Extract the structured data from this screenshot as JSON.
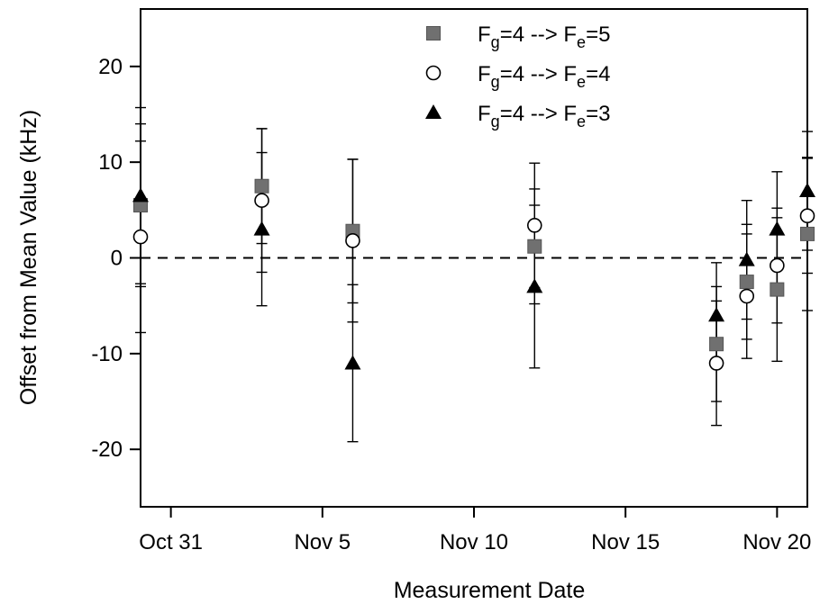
{
  "chart_data": {
    "type": "scatter",
    "title": "",
    "xlabel": "Measurement Date",
    "ylabel": "Offset from Mean Value (kHz)",
    "xlim": [
      "Oct 30",
      "Nov 21"
    ],
    "ylim": [
      -26,
      26
    ],
    "x_ticks": [
      {
        "date": "Oct 31",
        "label": "Oct 31"
      },
      {
        "date": "Nov 5",
        "label": "Nov 5"
      },
      {
        "date": "Nov 10",
        "label": "Nov 10"
      },
      {
        "date": "Nov 15",
        "label": "Nov 15"
      },
      {
        "date": "Nov 20",
        "label": "Nov 20"
      }
    ],
    "y_ticks": [
      {
        "value": 20,
        "label": "20"
      },
      {
        "value": 10,
        "label": "10"
      },
      {
        "value": 0,
        "label": "0"
      },
      {
        "value": -10,
        "label": "-10"
      },
      {
        "value": -20,
        "label": "-20"
      }
    ],
    "reference_line": {
      "y": 0,
      "style": "dashed"
    },
    "grid": false,
    "legend_position": "top-center",
    "series": [
      {
        "name": "F_g=4 --> F_e=5",
        "label_parts": {
          "l1": "F",
          "s1": "g",
          "mid": "=4 --> F",
          "s2": "e",
          "end": "=5"
        },
        "marker": "square-filled",
        "color": "#707070",
        "points": [
          {
            "x": "Oct 30",
            "y": 5.5,
            "err": 8.5
          },
          {
            "x": "Nov 3",
            "y": 7.5,
            "err": 6
          },
          {
            "x": "Nov 6",
            "y": 2.8,
            "err": 7.5
          },
          {
            "x": "Nov 12",
            "y": 1.2,
            "err": 6
          },
          {
            "x": "Nov 18",
            "y": -9,
            "err": 6
          },
          {
            "x": "Nov 19",
            "y": -2.5,
            "err": 6
          },
          {
            "x": "Nov 20",
            "y": -3.3,
            "err": 7.5
          },
          {
            "x": "Nov 21",
            "y": 2.5,
            "err": 8
          }
        ]
      },
      {
        "name": "F_g=4 --> F_e=4",
        "label_parts": {
          "l1": "F",
          "s1": "g",
          "mid": "=4 --> F",
          "s2": "e",
          "end": "=4"
        },
        "marker": "circle-open",
        "color": "#000000",
        "points": [
          {
            "x": "Oct 30",
            "y": 2.2,
            "err": 10
          },
          {
            "x": "Nov 3",
            "y": 6,
            "err": 7.5
          },
          {
            "x": "Nov 6",
            "y": 1.8,
            "err": 8.5
          },
          {
            "x": "Nov 12",
            "y": 3.4,
            "err": 6.5
          },
          {
            "x": "Nov 18",
            "y": -11,
            "err": 6.5
          },
          {
            "x": "Nov 19",
            "y": -4,
            "err": 6.5
          },
          {
            "x": "Nov 20",
            "y": -0.8,
            "err": 6
          },
          {
            "x": "Nov 21",
            "y": 4.4,
            "err": 6
          }
        ]
      },
      {
        "name": "F_g=4 --> F_e=3",
        "label_parts": {
          "l1": "F",
          "s1": "g",
          "mid": "=4 --> F",
          "s2": "e",
          "end": "=3"
        },
        "marker": "triangle-filled",
        "color": "#000000",
        "points": [
          {
            "x": "Oct 30",
            "y": 6.5,
            "err": 9.2
          },
          {
            "x": "Nov 3",
            "y": 3,
            "err": 8
          },
          {
            "x": "Nov 6",
            "y": -11,
            "err": 8.2
          },
          {
            "x": "Nov 12",
            "y": -3,
            "err": 8.5
          },
          {
            "x": "Nov 18",
            "y": -6,
            "err": 5.5
          },
          {
            "x": "Nov 19",
            "y": -0.2,
            "err": 6.2
          },
          {
            "x": "Nov 20",
            "y": 3,
            "err": 6
          },
          {
            "x": "Nov 21",
            "y": 7,
            "err": 6.2
          }
        ]
      }
    ]
  }
}
